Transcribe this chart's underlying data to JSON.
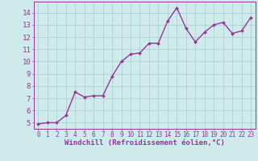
{
  "x_values": [
    0,
    1,
    2,
    3,
    4,
    5,
    6,
    7,
    8,
    9,
    10,
    11,
    12,
    13,
    14,
    15,
    16,
    17,
    18,
    19,
    20,
    21,
    22,
    23
  ],
  "y_values": [
    4.9,
    5.0,
    5.0,
    5.6,
    7.5,
    7.1,
    7.2,
    7.2,
    8.8,
    10.0,
    10.6,
    10.7,
    11.5,
    11.5,
    13.3,
    14.4,
    12.7,
    11.6,
    12.4,
    13.0,
    13.2,
    12.3,
    12.5,
    13.6
  ],
  "line_color": "#993399",
  "marker": "D",
  "marker_size": 2.0,
  "line_width": 1.0,
  "bg_color": "#ceeaea",
  "grid_color": "#aacccc",
  "tick_color": "#993399",
  "label_color": "#993399",
  "xlabel": "Windchill (Refroidissement éolien,°C)",
  "xlabel_fontsize": 6.5,
  "ytick_fontsize": 6.5,
  "xtick_fontsize": 5.5,
  "y_tick_vals": [
    5,
    6,
    7,
    8,
    9,
    10,
    11,
    12,
    13,
    14
  ],
  "ylim": [
    4.5,
    14.9
  ],
  "xlim": [
    -0.5,
    23.5
  ]
}
